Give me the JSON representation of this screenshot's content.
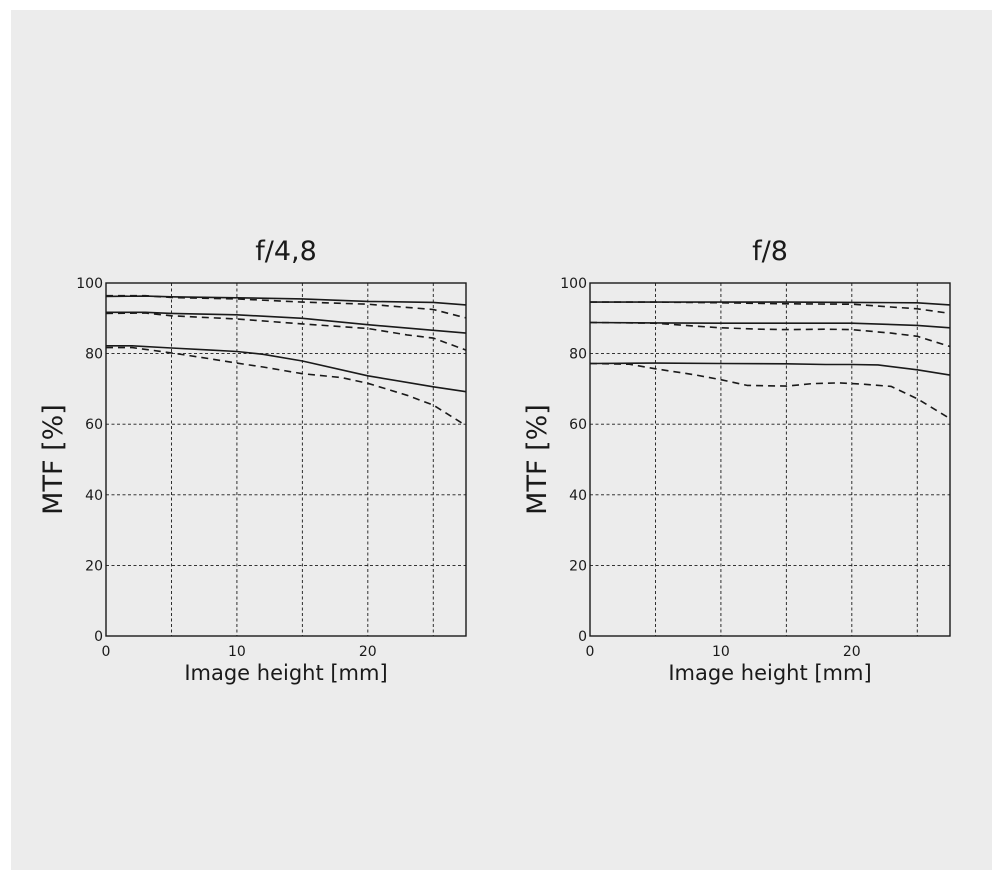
{
  "chart_data": [
    {
      "type": "line",
      "title": "f/4,8",
      "xlabel": "Image height [mm]",
      "ylabel": "MTF [%]",
      "xlim": [
        0,
        27.5
      ],
      "ylim": [
        0,
        100
      ],
      "xticks": [
        0,
        10,
        20
      ],
      "yticks": [
        0,
        20,
        40,
        60,
        80,
        100
      ],
      "x_gridlines": [
        5,
        10,
        15,
        20,
        25
      ],
      "y_gridlines": [
        20,
        40,
        60,
        80
      ],
      "grid": true,
      "series": [
        {
          "style": "solid",
          "x": [
            0,
            3,
            5,
            10,
            15,
            20,
            25,
            27.5
          ],
          "y": [
            96.2,
            96.3,
            96.1,
            95.8,
            95.5,
            94.8,
            94.5,
            93.8
          ]
        },
        {
          "style": "dashed",
          "x": [
            0,
            3,
            5,
            10,
            15,
            20,
            23,
            25,
            27.5
          ],
          "y": [
            96.4,
            96.4,
            95.9,
            95.5,
            94.6,
            94.0,
            93.1,
            92.5,
            90.1
          ]
        },
        {
          "style": "solid",
          "x": [
            0,
            3,
            5,
            10,
            15,
            20,
            25,
            27.5
          ],
          "y": [
            91.7,
            91.7,
            91.4,
            91.0,
            90.0,
            88.2,
            86.6,
            85.8
          ]
        },
        {
          "style": "dashed",
          "x": [
            0,
            3,
            5,
            10,
            15,
            20,
            23,
            25,
            27.5
          ],
          "y": [
            91.4,
            91.5,
            90.7,
            89.8,
            88.4,
            87.1,
            85.3,
            84.4,
            81.0
          ]
        },
        {
          "style": "solid",
          "x": [
            0,
            2,
            5,
            8,
            10,
            12,
            15,
            20,
            25,
            27.5
          ],
          "y": [
            82.2,
            82.2,
            81.6,
            81.0,
            80.6,
            79.8,
            77.9,
            73.7,
            70.6,
            69.2
          ]
        },
        {
          "style": "dashed",
          "x": [
            0,
            2,
            5,
            8,
            10,
            12,
            15,
            18,
            20,
            23,
            25,
            27.5
          ],
          "y": [
            81.7,
            81.7,
            80.2,
            78.5,
            77.3,
            76.2,
            74.3,
            73.2,
            71.6,
            68.2,
            65.4,
            59.6
          ]
        }
      ]
    },
    {
      "type": "line",
      "title": "f/8",
      "xlabel": "Image height [mm]",
      "ylabel": "MTF [%]",
      "xlim": [
        0,
        27.5
      ],
      "ylim": [
        0,
        100
      ],
      "xticks": [
        0,
        10,
        20
      ],
      "yticks": [
        0,
        20,
        40,
        60,
        80,
        100
      ],
      "x_gridlines": [
        5,
        10,
        15,
        20,
        25
      ],
      "y_gridlines": [
        20,
        40,
        60,
        80
      ],
      "grid": true,
      "series": [
        {
          "style": "solid",
          "x": [
            0,
            5,
            10,
            15,
            20,
            25,
            27.5
          ],
          "y": [
            94.6,
            94.6,
            94.6,
            94.6,
            94.5,
            94.4,
            93.8
          ]
        },
        {
          "style": "dashed",
          "x": [
            0,
            5,
            10,
            15,
            20,
            23,
            25,
            27.5
          ],
          "y": [
            94.6,
            94.6,
            94.4,
            94.1,
            94.0,
            93.2,
            92.7,
            91.4
          ]
        },
        {
          "style": "solid",
          "x": [
            0,
            5,
            10,
            15,
            20,
            25,
            27.5
          ],
          "y": [
            88.8,
            88.7,
            88.6,
            88.6,
            88.6,
            88.0,
            87.3
          ]
        },
        {
          "style": "dashed",
          "x": [
            0,
            5,
            8,
            10,
            13,
            15,
            18,
            20,
            23,
            25,
            27.5
          ],
          "y": [
            88.8,
            88.6,
            87.8,
            87.3,
            86.9,
            86.8,
            86.9,
            86.8,
            85.8,
            84.9,
            82.0
          ]
        },
        {
          "style": "solid",
          "x": [
            0,
            5,
            10,
            15,
            18,
            20,
            22,
            25,
            27.5
          ],
          "y": [
            77.2,
            77.3,
            77.2,
            77.1,
            76.9,
            76.9,
            76.8,
            75.4,
            73.9
          ]
        },
        {
          "style": "dashed",
          "x": [
            0,
            3,
            5,
            8,
            10,
            12,
            15,
            17,
            19,
            21,
            23,
            25,
            27.5
          ],
          "y": [
            77.2,
            77.0,
            75.7,
            74.0,
            72.6,
            71.0,
            70.8,
            71.5,
            71.7,
            71.3,
            70.7,
            67.2,
            61.6
          ]
        }
      ]
    }
  ]
}
